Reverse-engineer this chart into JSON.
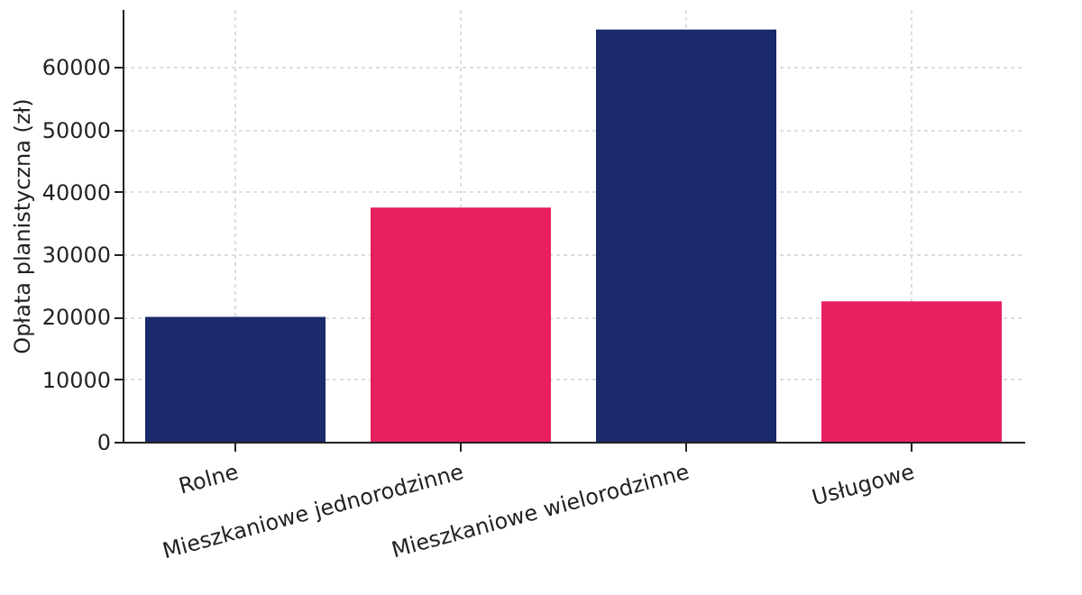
{
  "chart_data": {
    "type": "bar",
    "ylabel": "Opłata planistyczna (zł)",
    "categories": [
      "Rolne",
      "Mieszkaniowe jednorodzinne",
      "Mieszkaniowe wielorodzinne",
      "Usługowe"
    ],
    "values": [
      20000,
      37500,
      66000,
      22500
    ],
    "colors": [
      "#1b2a6b",
      "#e8205f",
      "#1b2a6b",
      "#e8205f"
    ],
    "ylim": [
      0,
      69300
    ],
    "yticks": [
      0,
      10000,
      20000,
      30000,
      40000,
      50000,
      60000
    ],
    "grid": true
  }
}
